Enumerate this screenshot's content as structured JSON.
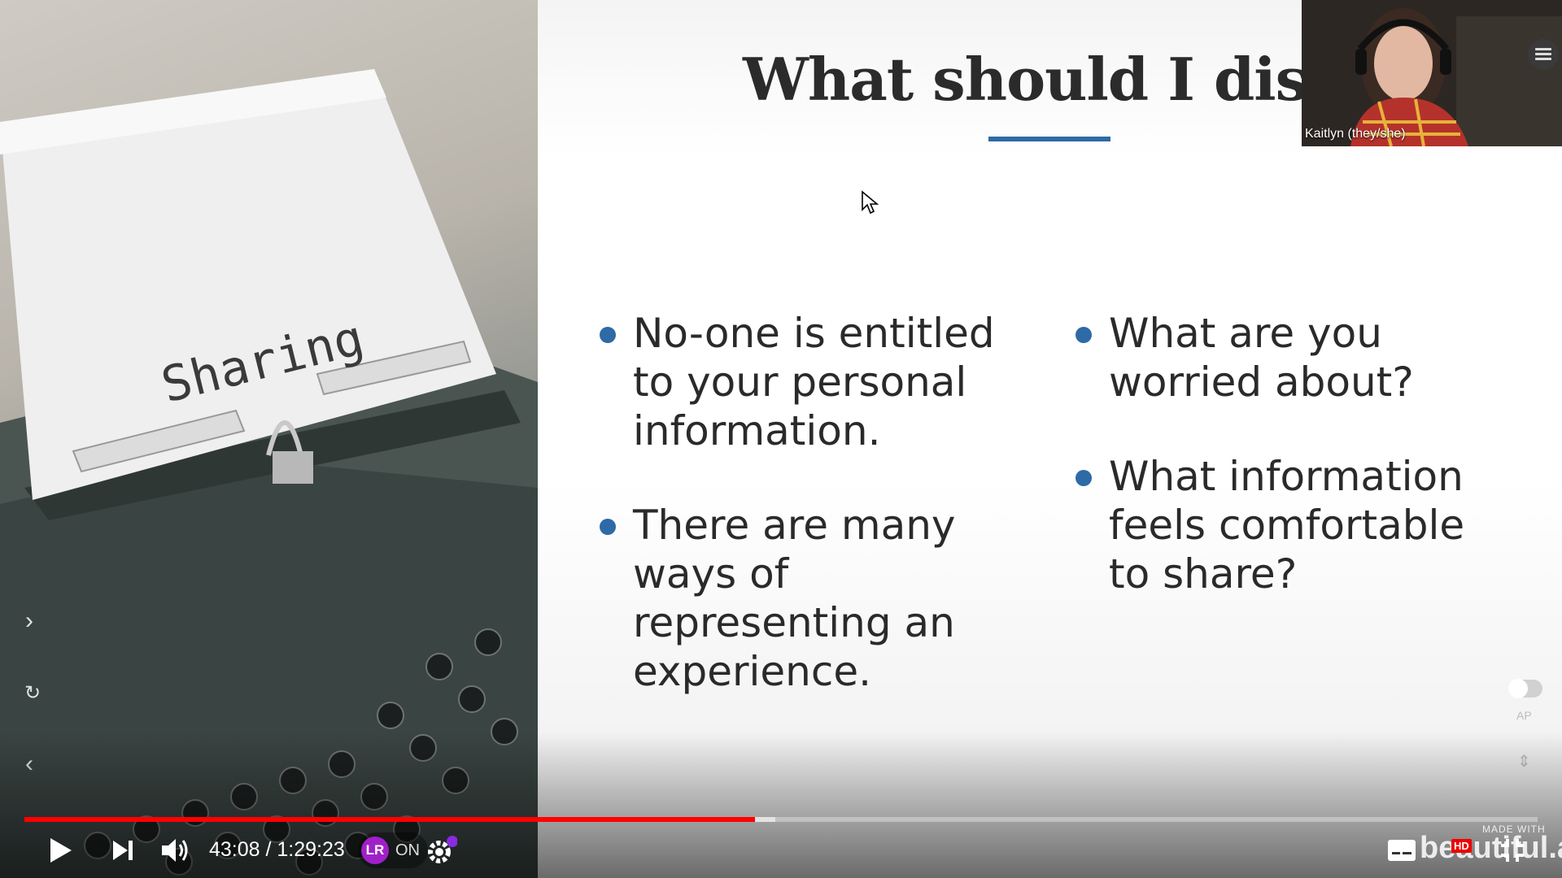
{
  "slide": {
    "title": "What should I disclose",
    "left_bullets": [
      "No-one is entitled to your personal information.",
      "There are many ways of representing an experience."
    ],
    "right_bullets": [
      "What are you worried about?",
      "What information feels comfortable to share?"
    ],
    "accent_color": "#2e6aa6"
  },
  "photo": {
    "paper_text": "Sharing"
  },
  "webcam": {
    "name": "Kaitlyn (they/she)"
  },
  "side_controls": {
    "next_icon": "chevron-right-icon",
    "replay_icon": "refresh-icon",
    "prev_icon": "chevron-left-icon",
    "ap_label": "AP"
  },
  "player": {
    "time_display": "43:08 / 1:29:23",
    "played_fraction": 0.4826,
    "buffered_fraction": 0.496,
    "extension_logo": "LR",
    "extension_state": "ON",
    "watermark_small": "MADE WITH",
    "watermark_big": "beautiful.ai",
    "hd_badge": "HD",
    "progress_color": "#ff0000"
  }
}
